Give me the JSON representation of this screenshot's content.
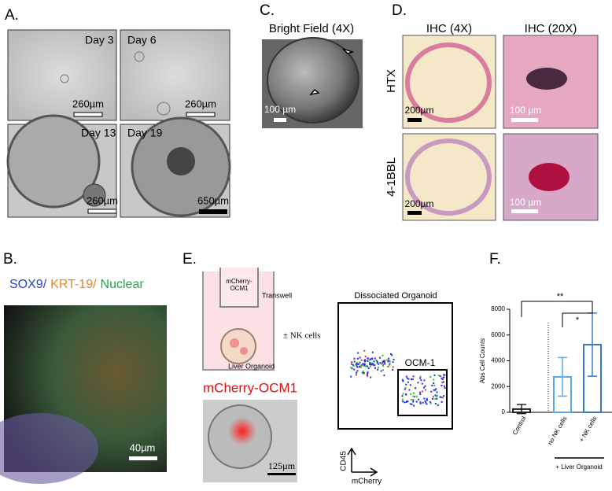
{
  "panels": {
    "a": {
      "label": "A.",
      "tiles": [
        {
          "day": "Day 3",
          "scale": "260µm"
        },
        {
          "day": "Day 6",
          "scale": "260µm"
        },
        {
          "day": "Day 13",
          "scale": "260µm"
        },
        {
          "day": "Day 19",
          "scale": "650µm"
        }
      ]
    },
    "b": {
      "label": "B.",
      "stains": [
        {
          "text": "SOX9/",
          "color": "#2a3fd8"
        },
        {
          "text": "KRT-19/",
          "color": "#e8862a"
        },
        {
          "text": "Nuclear",
          "color": "#1faa4a"
        }
      ],
      "scale": "40µm"
    },
    "c": {
      "label": "C.",
      "title": "Bright Field (4X)",
      "scale": "100 µm"
    },
    "d": {
      "label": "D.",
      "columns": [
        "IHC (4X)",
        "IHC (20X)"
      ],
      "rows": [
        "HTX",
        "4-1BBL"
      ],
      "scales": [
        [
          "200µm",
          "100 µm"
        ],
        [
          "200µm",
          "100 µm"
        ]
      ]
    },
    "e": {
      "label": "E.",
      "cell_label": [
        "mCherry-",
        "OCM1"
      ],
      "transwell": "Transwell",
      "treatment": "± NK cells",
      "organoid": "Liver Organoid",
      "image_title": "mCherry-OCM1",
      "image_scale": "125µm",
      "flow_title": "Dissociated Organoid",
      "gate": "OCM-1",
      "y_axis": "CD45",
      "x_axis": "mCherry"
    },
    "f": {
      "label": "F.",
      "group_label": "+ Liver Organoid",
      "significance": [
        "**",
        "*"
      ]
    }
  },
  "chart_data": {
    "type": "bar",
    "y_label": "Abs Cell Counts",
    "categories": [
      "Control",
      "no NK cells",
      "+ NK cells"
    ],
    "values": [
      250,
      2750,
      5250
    ],
    "errors": [
      350,
      1500,
      2450
    ],
    "colors": [
      "#222222",
      "#5aa9e6",
      "#3a78c4"
    ],
    "ylim": [
      0,
      8000
    ],
    "yticks": [
      0,
      2000,
      4000,
      6000,
      8000
    ]
  }
}
